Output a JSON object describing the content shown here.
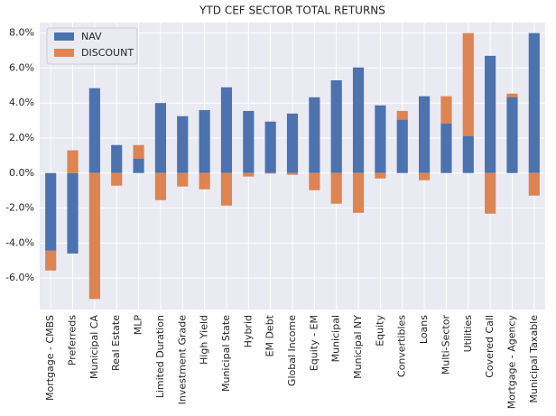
{
  "chart_data": {
    "type": "bar",
    "stacked": true,
    "title": "YTD CEF SECTOR TOTAL RETURNS",
    "categories": [
      "Mortgage - CMBS",
      "Preferreds",
      "Municipal CA",
      "Real Estate",
      "MLP",
      "Limited Duration",
      "Investment Grade",
      "High Yield",
      "Municipal State",
      "Hybrid",
      "EM Debt",
      "Global Income",
      "Equity - EM",
      "Municipal",
      "Municipal NY",
      "Equity",
      "Convertibles",
      "Loans",
      "Multi-Sector",
      "Utilities",
      "Covered Call",
      "Mortgage - Agency",
      "Municipal Taxable"
    ],
    "series": [
      {
        "name": "NAV",
        "color": "#4c72b0",
        "values": [
          -4.44,
          -4.6,
          4.85,
          1.6,
          0.83,
          4.0,
          3.25,
          3.6,
          4.9,
          3.55,
          2.94,
          3.4,
          4.33,
          5.3,
          6.03,
          3.87,
          3.05,
          4.39,
          2.84,
          2.12,
          6.7,
          4.34,
          8.0
        ]
      },
      {
        "name": "DISCOUNT",
        "color": "#dd8452",
        "values": [
          -1.13,
          1.3,
          -7.2,
          -0.72,
          0.77,
          -1.55,
          -0.77,
          -0.93,
          -1.86,
          -0.2,
          -0.03,
          -0.1,
          -0.98,
          -1.75,
          -2.27,
          -0.31,
          0.5,
          -0.41,
          1.55,
          5.88,
          -2.32,
          0.2,
          -1.29
        ]
      }
    ],
    "ylim": [
      -7.8,
      8.6
    ],
    "yticks": [
      {
        "value": -6,
        "label": "-6.0%"
      },
      {
        "value": -4,
        "label": "-4.0%"
      },
      {
        "value": -2,
        "label": "-2.0%"
      },
      {
        "value": 0,
        "label": "0.0%"
      },
      {
        "value": 2,
        "label": "2.0%"
      },
      {
        "value": 4,
        "label": "4.0%"
      },
      {
        "value": 6,
        "label": "6.0%"
      },
      {
        "value": 8,
        "label": "8.0%"
      }
    ],
    "grid": true,
    "legend": "upper left"
  }
}
